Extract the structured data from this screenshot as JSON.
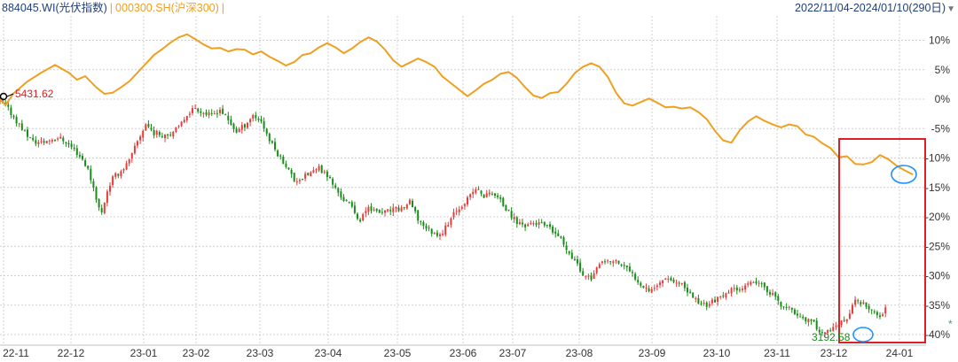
{
  "header": {
    "main_code": "884045.WI",
    "main_name": "(光伏指数)",
    "separator": "|",
    "compare_code": "000300.SH",
    "compare_name": "(沪深300)",
    "range": "2022/11/04-2024/01/10(290日)"
  },
  "chart_data": {
    "type": "line",
    "subtype": "candlestick with comparison line",
    "series": [
      {
        "name": "884045.WI(光伏指数)",
        "kind": "candlestick"
      },
      {
        "name": "000300.SH(沪深300)",
        "kind": "line"
      }
    ],
    "x_tick_labels": [
      "22-11",
      "22-12",
      "23-01",
      "23-02",
      "23-03",
      "23-04",
      "23-05",
      "23-06",
      "23-07",
      "23-08",
      "23-09",
      "23-10",
      "23-11",
      "23-12",
      "24-01"
    ],
    "y_tick_labels": [
      "10%",
      "5%",
      "0%",
      "-5%",
      "-10%",
      "-15%",
      "-20%",
      "-25%",
      "-30%",
      "-35%",
      "-40%"
    ],
    "y_axis_side": "right",
    "ylim": [
      -41,
      13
    ],
    "grid": true,
    "annotations": {
      "max_value": "5431.62",
      "min_value": "3192.58",
      "highlight": "red rectangle over 23-12 to 24-01",
      "markers": "blue ellipses at the latest comparison-line level and at the low"
    },
    "comparison_line_points": [
      [
        0,
        0
      ],
      [
        2,
        -1
      ],
      [
        5,
        1
      ],
      [
        10,
        3
      ],
      [
        15,
        4.5
      ],
      [
        20,
        5.8
      ],
      [
        25,
        4.5
      ],
      [
        28,
        3.3
      ],
      [
        31,
        3.9
      ],
      [
        35,
        2
      ],
      [
        38,
        0.9
      ],
      [
        41,
        1.1
      ],
      [
        44,
        2
      ],
      [
        47,
        3
      ],
      [
        50,
        4.5
      ],
      [
        53,
        6
      ],
      [
        56,
        7.5
      ],
      [
        59,
        8.5
      ],
      [
        62,
        9.6
      ],
      [
        65,
        10.5
      ],
      [
        68,
        11
      ],
      [
        71,
        10.2
      ],
      [
        74,
        9.3
      ],
      [
        77,
        8.6
      ],
      [
        80,
        8.7
      ],
      [
        83,
        8.1
      ],
      [
        86,
        8.5
      ],
      [
        89,
        8.4
      ],
      [
        92,
        7.6
      ],
      [
        95,
        8.1
      ],
      [
        98,
        7.2
      ],
      [
        101,
        6.5
      ],
      [
        104,
        5.7
      ],
      [
        107,
        6.3
      ],
      [
        110,
        7.5
      ],
      [
        113,
        7.8
      ],
      [
        116,
        8.8
      ],
      [
        119,
        9.5
      ],
      [
        122,
        8.8
      ],
      [
        125,
        7.8
      ],
      [
        128,
        8.6
      ],
      [
        131,
        9.7
      ],
      [
        134,
        10.5
      ],
      [
        137,
        9.8
      ],
      [
        140,
        8.4
      ],
      [
        143,
        6.6
      ],
      [
        146,
        5.5
      ],
      [
        149,
        6.2
      ],
      [
        152,
        6.9
      ],
      [
        155,
        6.3
      ],
      [
        158,
        5.5
      ],
      [
        161,
        3.8
      ],
      [
        164,
        2.7
      ],
      [
        167,
        1.6
      ],
      [
        170,
        0.5
      ],
      [
        173,
        1.5
      ],
      [
        176,
        2.6
      ],
      [
        179,
        3.3
      ],
      [
        182,
        4.3
      ],
      [
        185,
        4.6
      ],
      [
        188,
        3.6
      ],
      [
        191,
        2
      ],
      [
        194,
        0.6
      ],
      [
        197,
        0.2
      ],
      [
        200,
        1
      ],
      [
        203,
        1.2
      ],
      [
        206,
        2.6
      ],
      [
        209,
        4.4
      ],
      [
        212,
        5.5
      ],
      [
        215,
        6.1
      ],
      [
        218,
        5.5
      ],
      [
        221,
        3.8
      ],
      [
        224,
        1.1
      ],
      [
        227,
        -0.7
      ],
      [
        230,
        -1.1
      ],
      [
        233,
        -0.5
      ],
      [
        236,
        0.1
      ],
      [
        239,
        -0.6
      ],
      [
        242,
        -1.4
      ],
      [
        245,
        -1.3
      ],
      [
        248,
        -1.6
      ],
      [
        251,
        -1.4
      ],
      [
        254,
        -2.2
      ],
      [
        257,
        -3.4
      ],
      [
        260,
        -5.4
      ],
      [
        263,
        -7
      ],
      [
        266,
        -7.4
      ],
      [
        269,
        -5.3
      ],
      [
        272,
        -3.8
      ],
      [
        275,
        -2.9
      ],
      [
        278,
        -3.7
      ],
      [
        281,
        -4.3
      ],
      [
        284,
        -4.8
      ],
      [
        287,
        -4.3
      ],
      [
        290,
        -4.6
      ],
      [
        293,
        -6
      ],
      [
        296,
        -6.4
      ],
      [
        299,
        -7.5
      ],
      [
        302,
        -8.3
      ],
      [
        305,
        -9.9
      ],
      [
        308,
        -9.7
      ],
      [
        311,
        -11
      ],
      [
        314,
        -11.1
      ],
      [
        317,
        -10.7
      ],
      [
        320,
        -9.5
      ],
      [
        323,
        -10.2
      ],
      [
        326,
        -11.3
      ],
      [
        329,
        -12.1
      ],
      [
        332,
        -12.8
      ]
    ],
    "candle_path_points": [
      [
        0,
        -0.5
      ],
      [
        3,
        -1.7
      ],
      [
        6,
        -3.7
      ],
      [
        9,
        -5.6
      ],
      [
        12,
        -7.2
      ],
      [
        15,
        -7.4
      ],
      [
        18,
        -6.9
      ],
      [
        21,
        -6.5
      ],
      [
        24,
        -7.2
      ],
      [
        27,
        -8.6
      ],
      [
        30,
        -10.2
      ],
      [
        32,
        -12
      ],
      [
        34,
        -15
      ],
      [
        36,
        -18.5
      ],
      [
        37,
        -19.3
      ],
      [
        39,
        -15.5
      ],
      [
        41,
        -13.4
      ],
      [
        44,
        -12.2
      ],
      [
        47,
        -10.5
      ],
      [
        50,
        -7.2
      ],
      [
        53,
        -4.2
      ],
      [
        56,
        -5.7
      ],
      [
        59,
        -6
      ],
      [
        62,
        -5.8
      ],
      [
        65,
        -4.9
      ],
      [
        68,
        -2.5
      ],
      [
        71,
        -1.4
      ],
      [
        74,
        -2.3
      ],
      [
        77,
        -2.8
      ],
      [
        80,
        -1.7
      ],
      [
        83,
        -3.7
      ],
      [
        86,
        -5.5
      ],
      [
        89,
        -4.4
      ],
      [
        92,
        -2.7
      ],
      [
        95,
        -3.7
      ],
      [
        98,
        -7
      ],
      [
        101,
        -9.3
      ],
      [
        104,
        -11.2
      ],
      [
        107,
        -13.8
      ],
      [
        110,
        -13.4
      ],
      [
        113,
        -12.5
      ],
      [
        116,
        -11.8
      ],
      [
        119,
        -12.9
      ],
      [
        122,
        -15.2
      ],
      [
        125,
        -17.1
      ],
      [
        128,
        -18.4
      ],
      [
        131,
        -20.7
      ],
      [
        134,
        -18.1
      ],
      [
        137,
        -19.3
      ],
      [
        140,
        -19.2
      ],
      [
        143,
        -18.8
      ],
      [
        146,
        -18.6
      ],
      [
        149,
        -17.5
      ],
      [
        152,
        -20.4
      ],
      [
        155,
        -21.8
      ],
      [
        158,
        -22.9
      ],
      [
        161,
        -22.6
      ],
      [
        164,
        -20.2
      ],
      [
        167,
        -18.4
      ],
      [
        170,
        -17
      ],
      [
        173,
        -15.2
      ],
      [
        176,
        -16.5
      ],
      [
        179,
        -15.8
      ],
      [
        182,
        -17.3
      ],
      [
        185,
        -19.4
      ],
      [
        188,
        -20.9
      ],
      [
        191,
        -21.4
      ],
      [
        194,
        -21
      ],
      [
        197,
        -21.3
      ],
      [
        200,
        -22.1
      ],
      [
        203,
        -23.3
      ],
      [
        206,
        -25.3
      ],
      [
        209,
        -27.4
      ],
      [
        212,
        -29.8
      ],
      [
        215,
        -30.3
      ],
      [
        218,
        -28.2
      ],
      [
        221,
        -27.6
      ],
      [
        224,
        -27.6
      ],
      [
        227,
        -28.4
      ],
      [
        230,
        -29.8
      ],
      [
        233,
        -31.3
      ],
      [
        236,
        -32.3
      ],
      [
        239,
        -31.7
      ],
      [
        242,
        -30.1
      ],
      [
        245,
        -30.9
      ],
      [
        248,
        -31.7
      ],
      [
        251,
        -33.1
      ],
      [
        254,
        -34.5
      ],
      [
        257,
        -34.9
      ],
      [
        260,
        -34.1
      ],
      [
        263,
        -33.7
      ],
      [
        266,
        -32.4
      ],
      [
        269,
        -32
      ],
      [
        272,
        -31.7
      ],
      [
        275,
        -31.1
      ],
      [
        278,
        -32.1
      ],
      [
        281,
        -33.2
      ],
      [
        284,
        -35.1
      ],
      [
        287,
        -35.7
      ],
      [
        290,
        -36.6
      ],
      [
        293,
        -37.4
      ],
      [
        296,
        -38.2
      ],
      [
        299,
        -39.7
      ],
      [
        302,
        -39.4
      ],
      [
        305,
        -38.4
      ],
      [
        308,
        -37.3
      ],
      [
        311,
        -34.2
      ],
      [
        314,
        -34.9
      ],
      [
        317,
        -36.3
      ],
      [
        320,
        -36.9
      ],
      [
        322,
        -35.4
      ]
    ],
    "last_candle_x_index": 322
  },
  "colors": {
    "rise": "#e63c3c",
    "fall": "#1a8c1a",
    "comparison_line": "#f0a020",
    "grid": "#d0d0d0",
    "highlight_box": "#e02020",
    "marker_ellipse": "#1e90ff"
  }
}
